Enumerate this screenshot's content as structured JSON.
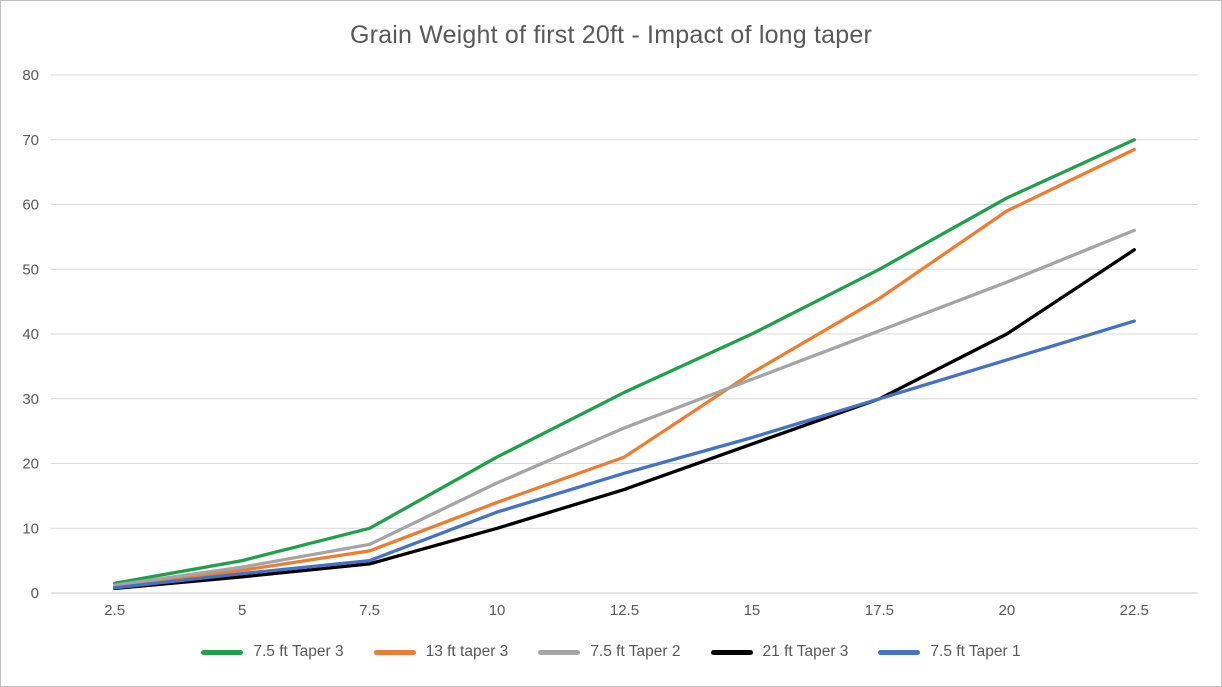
{
  "chart_data": {
    "type": "line",
    "title": "Grain Weight of first 20ft - Impact of long taper",
    "categories": [
      "2.5",
      "5",
      "7.5",
      "10",
      "12.5",
      "15",
      "17.5",
      "20",
      "22.5"
    ],
    "series": [
      {
        "name": "7.5 ft Taper 3",
        "color": "#21A04C",
        "values": [
          1.5,
          5,
          10,
          21,
          31,
          40,
          50,
          61,
          70
        ]
      },
      {
        "name": "13 ft taper 3",
        "color": "#ED7D31",
        "values": [
          1,
          3.5,
          6.5,
          14,
          21,
          34,
          45.5,
          59,
          68.5
        ]
      },
      {
        "name": "7.5 ft Taper 2",
        "color": "#A5A5A5",
        "values": [
          1.2,
          4,
          7.5,
          17,
          25.5,
          33,
          40.5,
          48,
          56
        ]
      },
      {
        "name": "21 ft Taper 3",
        "color": "#000000",
        "values": [
          0.7,
          2.5,
          4.5,
          10,
          16,
          23,
          30,
          40,
          53
        ]
      },
      {
        "name": "7.5 ft Taper 1",
        "color": "#4472C4",
        "values": [
          0.8,
          3,
          5,
          12.5,
          18.5,
          24,
          30,
          36,
          42
        ]
      }
    ],
    "xlabel": "",
    "ylabel": "",
    "ylim": [
      0,
      80
    ],
    "ytick_step": 10,
    "yticks": [
      "0",
      "10",
      "20",
      "30",
      "40",
      "50",
      "60",
      "70",
      "80"
    ],
    "grid": true,
    "legend_position": "bottom",
    "colors": {
      "text": "#595959",
      "gridline": "#D9D9D9",
      "axis_line": "#C9C9C9",
      "background": "#FFFFFF",
      "border": "#BFBFBF"
    }
  }
}
